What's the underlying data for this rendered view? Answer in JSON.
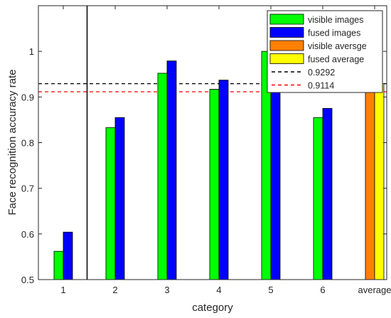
{
  "chart_data": {
    "type": "bar",
    "xlabel": "category",
    "ylabel": "Face recognition accuracy rate",
    "ylim": [
      0.5,
      1.1
    ],
    "yticks": [
      "0.5",
      "0.6",
      "0.7",
      "0.8",
      "0.9",
      "1"
    ],
    "categories": [
      "1",
      "2",
      "3",
      "4",
      "5",
      "6",
      "average"
    ],
    "series": [
      {
        "name": "visible images",
        "color": "#00ff00",
        "values": [
          0.562,
          0.833,
          0.952,
          0.917,
          1.0,
          0.855,
          null
        ]
      },
      {
        "name": "fused images",
        "color": "#0000ff",
        "values": [
          0.604,
          0.855,
          0.979,
          0.937,
          1.0,
          0.875,
          null
        ]
      },
      {
        "name": "visible aversge",
        "color": "#ff8000",
        "values": [
          null,
          null,
          null,
          null,
          null,
          null,
          0.9114
        ]
      },
      {
        "name": "fused average",
        "color": "#ffff00",
        "values": [
          null,
          null,
          null,
          null,
          null,
          null,
          0.9292
        ]
      }
    ],
    "reference_lines": [
      {
        "label": "0.9292",
        "value": 0.9292,
        "color": "#000000",
        "style": "dashed"
      },
      {
        "label": "0.9114",
        "value": 0.9114,
        "color": "#ff0000",
        "style": "dashed"
      }
    ],
    "divider_after_category": "1",
    "grid": false,
    "legend_position": "top-right"
  }
}
